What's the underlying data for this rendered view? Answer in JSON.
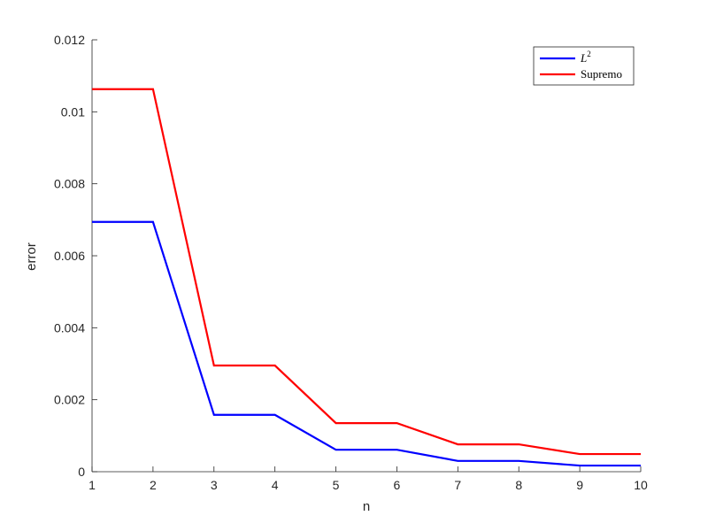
{
  "chart_data": {
    "type": "line",
    "title": "",
    "xlabel": "n",
    "ylabel": "error",
    "xlim": [
      1,
      10
    ],
    "ylim": [
      0,
      0.012
    ],
    "x": [
      1,
      2,
      3,
      4,
      5,
      6,
      7,
      8,
      9,
      10
    ],
    "xticks": [
      "1",
      "2",
      "3",
      "4",
      "5",
      "6",
      "7",
      "8",
      "9",
      "10"
    ],
    "yticks": [
      "0",
      "0.002",
      "0.004",
      "0.006",
      "0.008",
      "0.01",
      "0.012"
    ],
    "grid": false,
    "legend_position": "top-right",
    "series": [
      {
        "name": "L",
        "name_sup": "2",
        "color": "#0000ff",
        "values": [
          0.00694,
          0.00694,
          0.00158,
          0.00158,
          0.00061,
          0.00061,
          0.0003,
          0.0003,
          0.00017,
          0.00017
        ]
      },
      {
        "name": "Supremo",
        "color": "#ff0000",
        "values": [
          0.01063,
          0.01063,
          0.00295,
          0.00295,
          0.00135,
          0.00135,
          0.00076,
          0.00076,
          0.00049,
          0.00049
        ]
      }
    ]
  }
}
